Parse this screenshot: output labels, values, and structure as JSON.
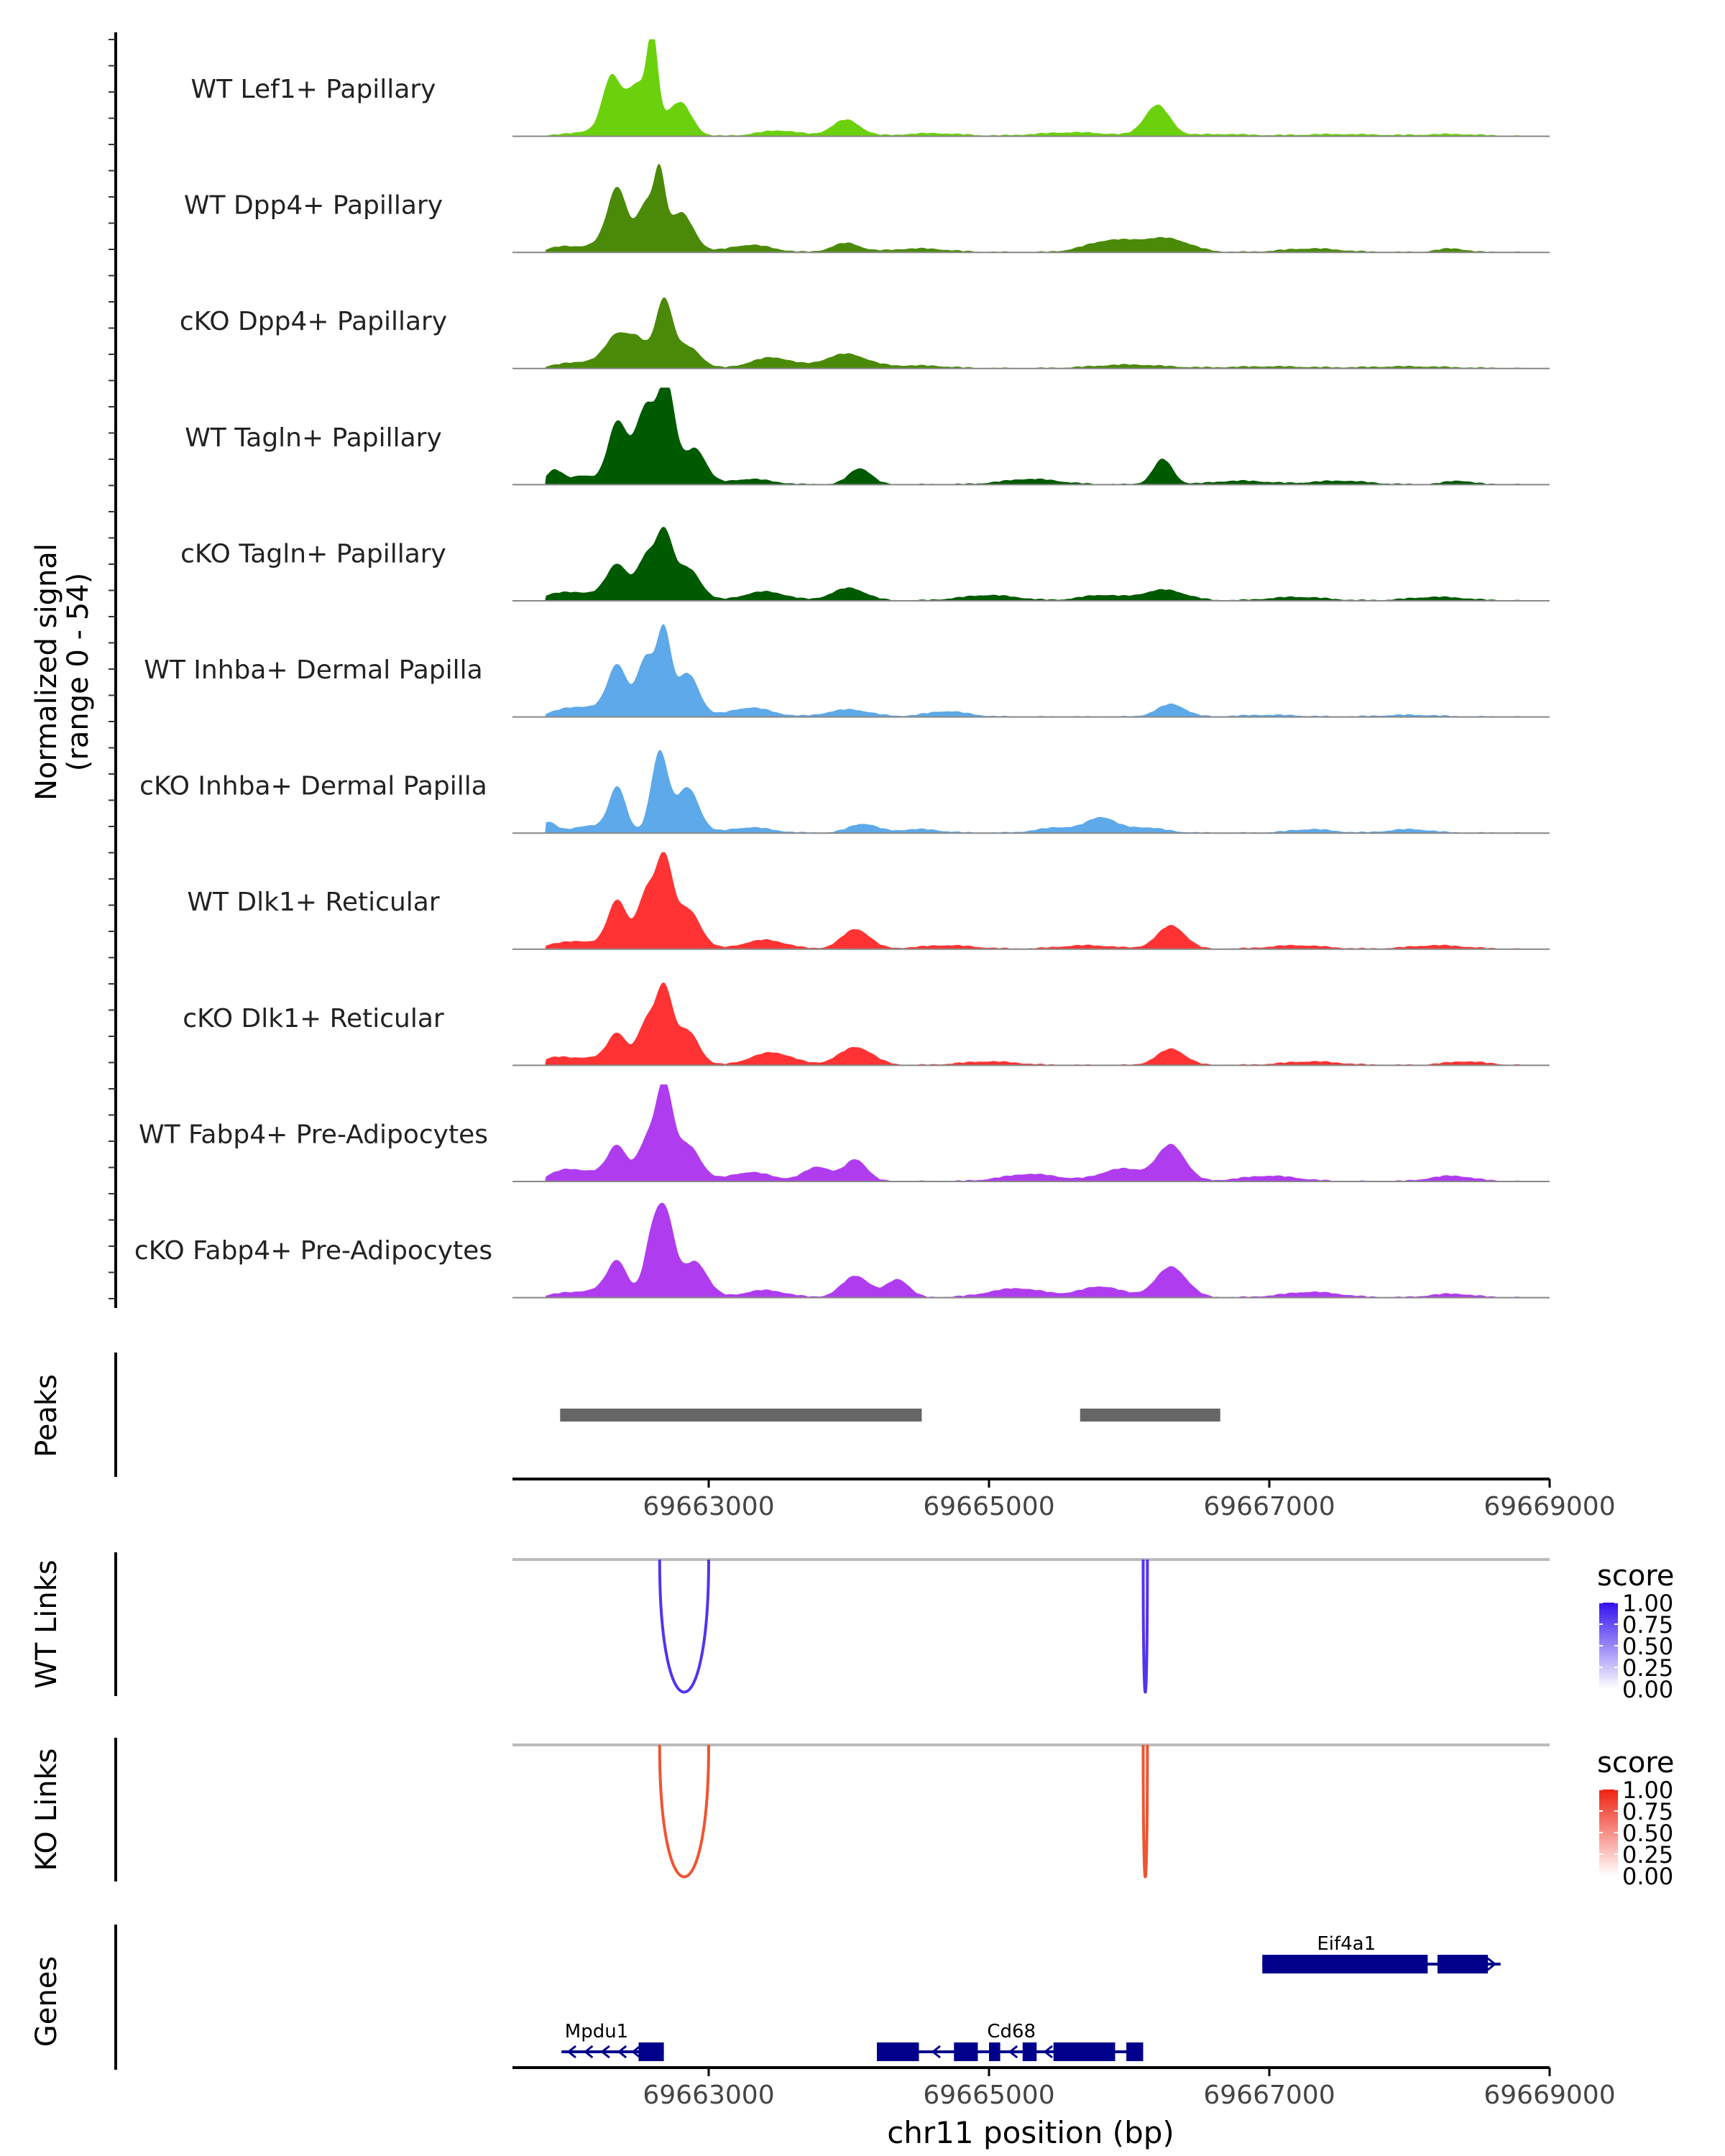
{
  "chart_data": {
    "type": "area",
    "title": "",
    "region": "chr11",
    "xlabel": "chr11 position (bp)",
    "xlim": [
      69661600,
      69669000
    ],
    "xticks": [
      69663000,
      69665000,
      69667000,
      69669000
    ],
    "xtick_labels": [
      "69663000",
      "69665000",
      "69667000",
      "69669000"
    ],
    "coverage": {
      "ylabel_line1": "Normalized signal",
      "ylabel_line2": "(range 0 - 54)",
      "ylim": [
        0,
        54
      ],
      "tracks": [
        {
          "name": "WT Lef1+ Papillary",
          "color": "#6BD10C",
          "peaks": [
            [
              69661950,
              0.5,
              120
            ],
            [
              69662200,
              3,
              130
            ],
            [
              69662300,
              26,
              60
            ],
            [
              69662500,
              29,
              110
            ],
            [
              69662600,
              41,
              35
            ],
            [
              69662800,
              18,
              80
            ],
            [
              69663500,
              3,
              150
            ],
            [
              69663980,
              9,
              100
            ],
            [
              69664600,
              1.5,
              200
            ],
            [
              69665600,
              2,
              250
            ],
            [
              69666200,
              17,
              90
            ],
            [
              69666650,
              1,
              200
            ],
            [
              69667500,
              1,
              300
            ],
            [
              69668300,
              1,
              200
            ]
          ]
        },
        {
          "name": "WT Dpp4+ Papillary",
          "color": "#4B8A08",
          "peaks": [
            [
              69661950,
              3,
              100
            ],
            [
              69662200,
              4,
              100
            ],
            [
              69662350,
              35,
              70
            ],
            [
              69662550,
              26,
              60
            ],
            [
              69662650,
              37,
              40
            ],
            [
              69662800,
              22,
              90
            ],
            [
              69663300,
              4,
              150
            ],
            [
              69663980,
              5,
              100
            ],
            [
              69664500,
              2,
              200
            ],
            [
              69665800,
              3,
              150
            ],
            [
              69666000,
              5,
              200
            ],
            [
              69666300,
              6,
              150
            ],
            [
              69667300,
              2,
              200
            ],
            [
              69668300,
              2,
              100
            ]
          ]
        },
        {
          "name": "cKO Dpp4+ Papillary",
          "color": "#4B8A08",
          "peaks": [
            [
              69661950,
              1.5,
              100
            ],
            [
              69662200,
              4,
              150
            ],
            [
              69662350,
              16,
              80
            ],
            [
              69662500,
              14,
              70
            ],
            [
              69662680,
              37,
              60
            ],
            [
              69662850,
              12,
              90
            ],
            [
              69663450,
              6,
              150
            ],
            [
              69663980,
              8,
              150
            ],
            [
              69664500,
              1.5,
              200
            ],
            [
              69666000,
              2,
              250
            ],
            [
              69667000,
              1,
              300
            ],
            [
              69668000,
              1,
              300
            ]
          ]
        },
        {
          "name": "WT Tagln+ Papillary",
          "color": "#005A00",
          "peaks": [
            [
              69661900,
              8,
              60
            ],
            [
              69662100,
              5,
              80
            ],
            [
              69662350,
              35,
              70
            ],
            [
              69662550,
              42,
              70
            ],
            [
              69662700,
              54,
              60
            ],
            [
              69662900,
              20,
              80
            ],
            [
              69663300,
              3,
              150
            ],
            [
              69664080,
              9,
              80
            ],
            [
              69665300,
              3,
              200
            ],
            [
              69666240,
              14,
              70
            ],
            [
              69666800,
              2,
              200
            ],
            [
              69667500,
              2,
              200
            ],
            [
              69668350,
              2,
              100
            ]
          ]
        },
        {
          "name": "cKO Tagln+ Papillary",
          "color": "#005A00",
          "peaks": [
            [
              69661900,
              3,
              100
            ],
            [
              69662100,
              4,
              120
            ],
            [
              69662350,
              20,
              80
            ],
            [
              69662550,
              22,
              60
            ],
            [
              69662680,
              36,
              60
            ],
            [
              69662850,
              18,
              90
            ],
            [
              69663400,
              5,
              150
            ],
            [
              69664000,
              7,
              120
            ],
            [
              69665000,
              3,
              200
            ],
            [
              69665800,
              3,
              150
            ],
            [
              69666250,
              6,
              150
            ],
            [
              69667200,
              2,
              200
            ],
            [
              69668200,
              2,
              200
            ]
          ]
        },
        {
          "name": "WT Inhba+ Dermal Papilla",
          "color": "#5DA9E9",
          "peaks": [
            [
              69661950,
              3,
              100
            ],
            [
              69662150,
              5,
              120
            ],
            [
              69662350,
              28,
              70
            ],
            [
              69662550,
              32,
              60
            ],
            [
              69662680,
              46,
              50
            ],
            [
              69662850,
              24,
              80
            ],
            [
              69663300,
              5,
              150
            ],
            [
              69664000,
              4,
              150
            ],
            [
              69664700,
              3,
              150
            ],
            [
              69666300,
              7,
              100
            ],
            [
              69667000,
              1,
              200
            ],
            [
              69668000,
              1,
              200
            ]
          ]
        },
        {
          "name": "cKO Inhba+ Dermal Papilla",
          "color": "#5DA9E9",
          "peaks": [
            [
              69661850,
              6,
              60
            ],
            [
              69662150,
              4,
              120
            ],
            [
              69662350,
              25,
              60
            ],
            [
              69662650,
              45,
              60
            ],
            [
              69662850,
              25,
              80
            ],
            [
              69663300,
              3,
              150
            ],
            [
              69664100,
              5,
              100
            ],
            [
              69664500,
              2,
              150
            ],
            [
              69665500,
              3,
              150
            ],
            [
              69665800,
              8,
              100
            ],
            [
              69666100,
              3,
              150
            ],
            [
              69667300,
              2,
              150
            ],
            [
              69668000,
              2,
              150
            ]
          ]
        },
        {
          "name": "WT Dlk1+ Reticular",
          "color": "#FF3333",
          "peaks": [
            [
              69661900,
              2,
              100
            ],
            [
              69662100,
              4,
              120
            ],
            [
              69662350,
              27,
              70
            ],
            [
              69662550,
              29,
              60
            ],
            [
              69662680,
              48,
              60
            ],
            [
              69662850,
              22,
              90
            ],
            [
              69663400,
              5,
              150
            ],
            [
              69664050,
              11,
              100
            ],
            [
              69664700,
              2,
              200
            ],
            [
              69665700,
              2,
              200
            ],
            [
              69666300,
              13,
              100
            ],
            [
              69667200,
              2,
              200
            ],
            [
              69668200,
              2,
              200
            ]
          ]
        },
        {
          "name": "cKO Dlk1+ Reticular",
          "color": "#FF3333",
          "peaks": [
            [
              69661900,
              4,
              100
            ],
            [
              69662150,
              4,
              120
            ],
            [
              69662350,
              17,
              70
            ],
            [
              69662550,
              22,
              60
            ],
            [
              69662680,
              42,
              60
            ],
            [
              69662850,
              19,
              80
            ],
            [
              69663450,
              7,
              150
            ],
            [
              69664050,
              10,
              120
            ],
            [
              69665000,
              2,
              200
            ],
            [
              69666300,
              9,
              100
            ],
            [
              69667300,
              2,
              200
            ],
            [
              69668400,
              2,
              150
            ]
          ]
        },
        {
          "name": "WT Fabp4+ Pre-Adipocytes",
          "color": "#B03CF0",
          "peaks": [
            [
              69661950,
              5,
              100
            ],
            [
              69662150,
              5,
              120
            ],
            [
              69662350,
              19,
              70
            ],
            [
              69662550,
              20,
              60
            ],
            [
              69662680,
              52,
              60
            ],
            [
              69662850,
              20,
              90
            ],
            [
              69663300,
              5,
              150
            ],
            [
              69663780,
              8,
              100
            ],
            [
              69664050,
              12,
              80
            ],
            [
              69665300,
              4,
              200
            ],
            [
              69665950,
              7,
              150
            ],
            [
              69666300,
              20,
              100
            ],
            [
              69667000,
              3,
              200
            ],
            [
              69668300,
              3,
              150
            ]
          ]
        },
        {
          "name": "cKO Fabp4+ Pre-Adipocytes",
          "color": "#B03CF0",
          "peaks": [
            [
              69661950,
              2,
              100
            ],
            [
              69662200,
              4,
              120
            ],
            [
              69662350,
              19,
              70
            ],
            [
              69662600,
              33,
              60
            ],
            [
              69662700,
              40,
              60
            ],
            [
              69662900,
              20,
              90
            ],
            [
              69663400,
              4,
              150
            ],
            [
              69664050,
              12,
              100
            ],
            [
              69664350,
              10,
              80
            ],
            [
              69665200,
              5,
              200
            ],
            [
              69665800,
              6,
              150
            ],
            [
              69666300,
              17,
              110
            ],
            [
              69667300,
              3,
              200
            ],
            [
              69668300,
              2,
              150
            ]
          ]
        }
      ]
    },
    "peaks_track": {
      "label": "Peaks",
      "color": "#666666",
      "intervals": [
        [
          69661940,
          69664520
        ],
        [
          69665650,
          69666650
        ]
      ]
    },
    "link_tracks": [
      {
        "label": "WT Links",
        "legend_title": "score",
        "color": "#5533EE",
        "legend_colors": [
          "#FFFFFF",
          "#3311EE"
        ],
        "legend_ticks": [
          "1.00",
          "0.75",
          "0.50",
          "0.25",
          "0.00"
        ],
        "links": [
          {
            "start": 69662650,
            "end": 69663000,
            "score": 0.85
          },
          {
            "start": 69666100,
            "end": 69666130,
            "score": 0.9
          }
        ]
      },
      {
        "label": "KO Links",
        "legend_title": "score",
        "color": "#EE5533",
        "legend_colors": [
          "#FFFFFF",
          "#EE2211"
        ],
        "legend_ticks": [
          "1.00",
          "0.75",
          "0.50",
          "0.25",
          "0.00"
        ],
        "links": [
          {
            "start": 69662650,
            "end": 69663000,
            "score": 0.85
          },
          {
            "start": 69666100,
            "end": 69666130,
            "score": 0.85
          }
        ]
      }
    ],
    "genes_track": {
      "label": "Genes",
      "color": "#00008B",
      "genes": [
        {
          "name": "Eif4a1",
          "strand": "+",
          "start": 69666950,
          "end": 69668650,
          "exons": [
            [
              69666950,
              69668130
            ],
            [
              69668200,
              69668560
            ]
          ]
        },
        {
          "name": "Mpdu1",
          "strand": "-",
          "start": 69661950,
          "end": 69662680,
          "exons": [
            [
              69662500,
              69662680
            ]
          ]
        },
        {
          "name": "Cd68",
          "strand": "-",
          "start": 69664200,
          "end": 69666100,
          "exons": [
            [
              69664200,
              69664500
            ],
            [
              69664750,
              69664920
            ],
            [
              69665000,
              69665080
            ],
            [
              69665240,
              69665340
            ],
            [
              69665460,
              69665900
            ],
            [
              69665980,
              69666100
            ]
          ]
        }
      ]
    }
  }
}
